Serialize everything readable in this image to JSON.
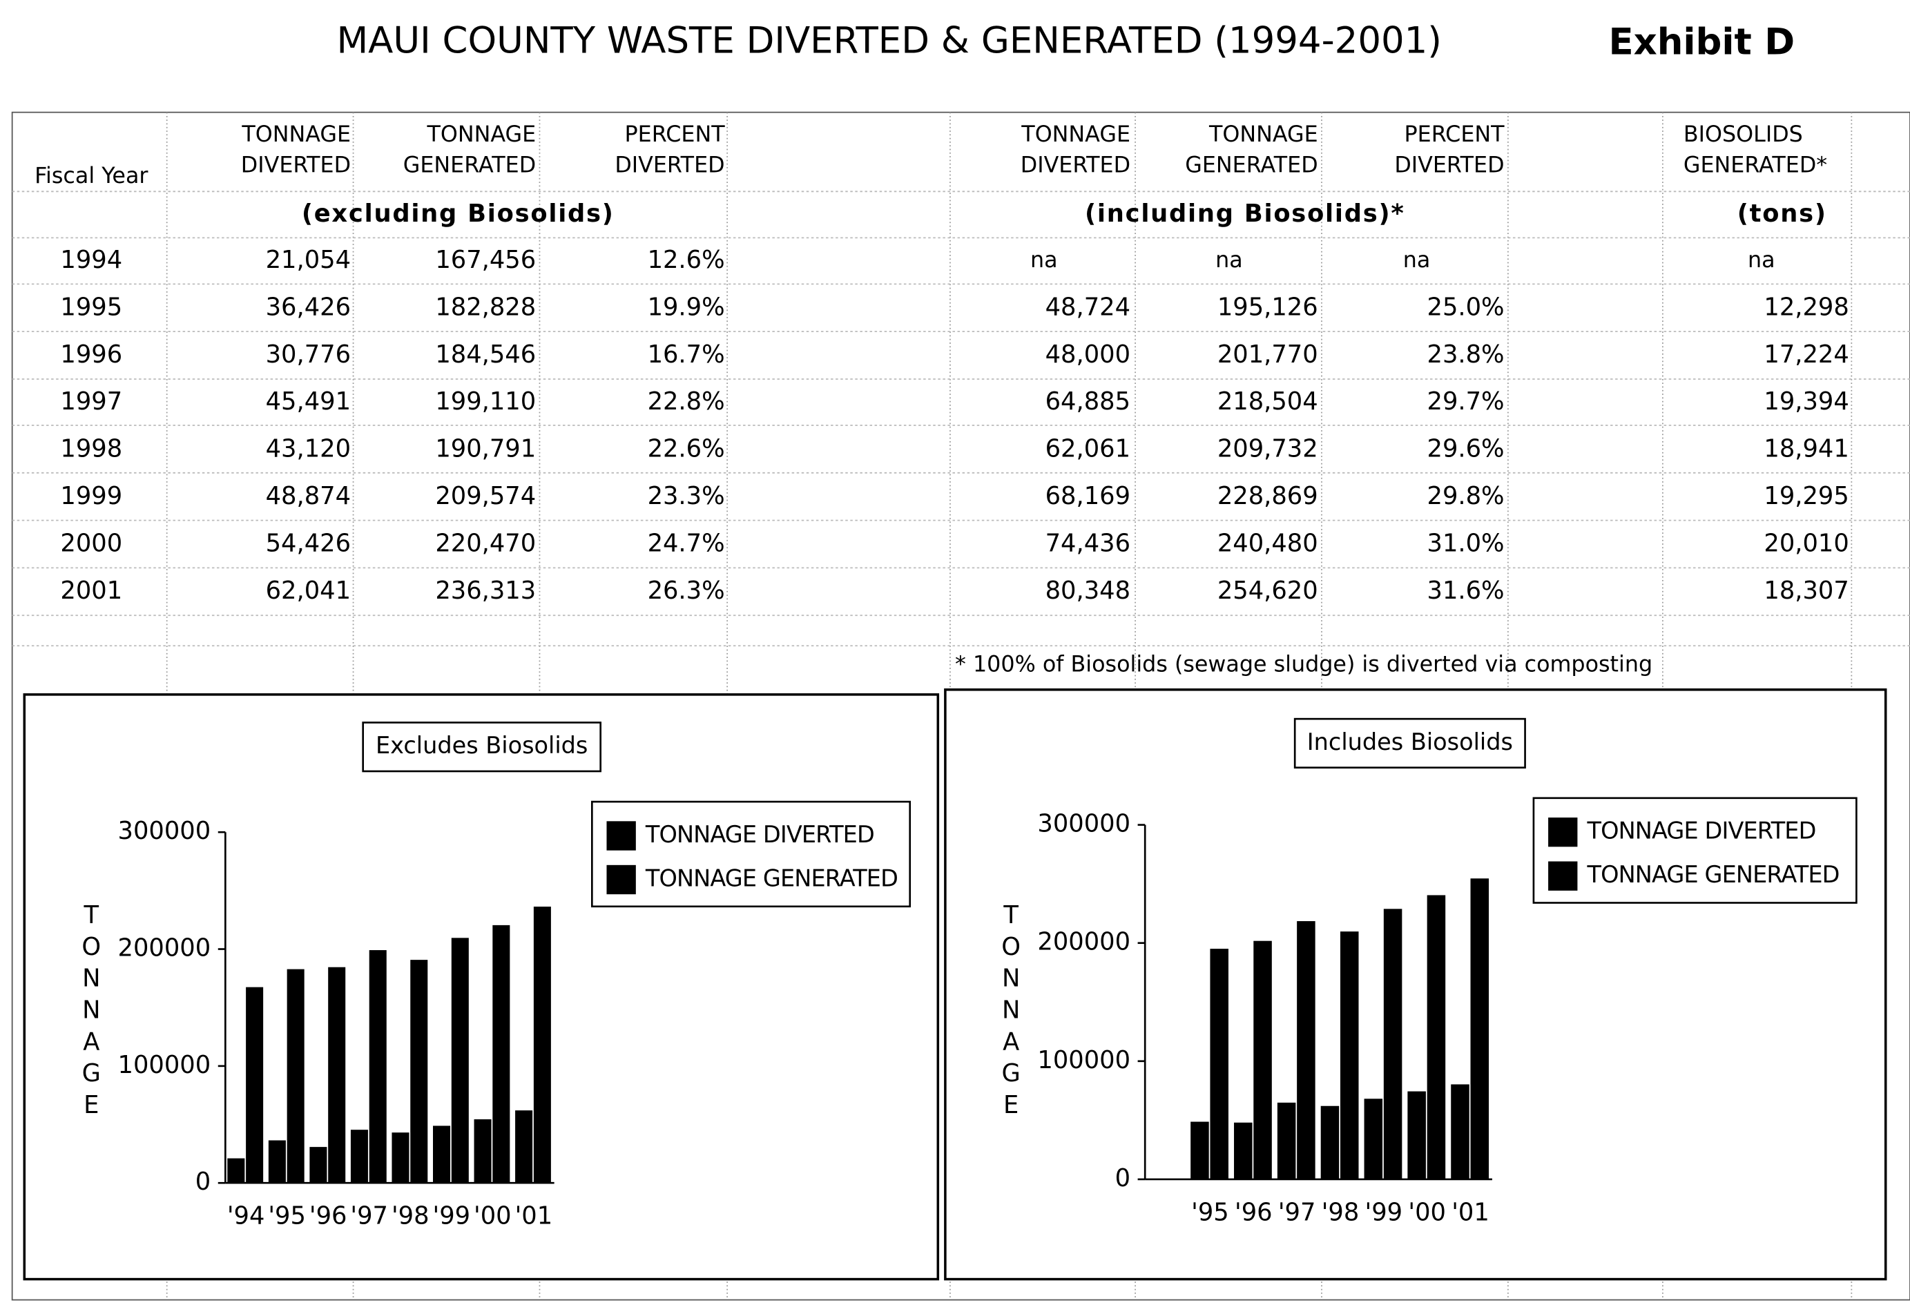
{
  "title": "MAUI COUNTY WASTE DIVERTED & GENERATED (1994-2001)",
  "exhibit": "Exhibit D",
  "table": {
    "fiscal_year_header": "Fiscal Year",
    "left_headers": [
      [
        "TONNAGE",
        "DIVERTED"
      ],
      [
        "TONNAGE",
        "GENERATED"
      ],
      [
        "PERCENT",
        "DIVERTED"
      ]
    ],
    "left_group": "(excluding Biosolids)",
    "right_headers": [
      [
        "TONNAGE",
        "DIVERTED"
      ],
      [
        "TONNAGE",
        "GENERATED"
      ],
      [
        "PERCENT",
        "DIVERTED"
      ]
    ],
    "right_group": "(including Biosolids)*",
    "biosolids_header": [
      "BIOSOLIDS",
      "GENERATED*"
    ],
    "biosolids_unit": "(tons)",
    "rows": [
      [
        "1994",
        "21,054",
        "167,456",
        "12.6%",
        "na",
        "na",
        "na",
        "na"
      ],
      [
        "1995",
        "36,426",
        "182,828",
        "19.9%",
        "48,724",
        "195,126",
        "25.0%",
        "12,298"
      ],
      [
        "1996",
        "30,776",
        "184,546",
        "16.7%",
        "48,000",
        "201,770",
        "23.8%",
        "17,224"
      ],
      [
        "1997",
        "45,491",
        "199,110",
        "22.8%",
        "64,885",
        "218,504",
        "29.7%",
        "19,394"
      ],
      [
        "1998",
        "43,120",
        "190,791",
        "22.6%",
        "62,061",
        "209,732",
        "29.6%",
        "18,941"
      ],
      [
        "1999",
        "48,874",
        "209,574",
        "23.3%",
        "68,169",
        "228,869",
        "29.8%",
        "19,295"
      ],
      [
        "2000",
        "54,426",
        "220,470",
        "24.7%",
        "74,436",
        "240,480",
        "31.0%",
        "20,010"
      ],
      [
        "2001",
        "62,041",
        "236,313",
        "26.3%",
        "80,348",
        "254,620",
        "31.6%",
        "18,307"
      ]
    ],
    "note": "* 100% of Biosolids (sewage sludge) is diverted via composting"
  },
  "chart_data": [
    {
      "type": "bar",
      "title": "Excludes Biosolids",
      "y_label": "TONNAGE",
      "categories": [
        "'94",
        "'95",
        "'96",
        "'97",
        "'98",
        "'99",
        "'00",
        "'01"
      ],
      "series": [
        {
          "name": "TONNAGE DIVERTED",
          "color": "#000000",
          "values": [
            21054,
            36426,
            30776,
            45491,
            43120,
            48874,
            54426,
            62041
          ]
        },
        {
          "name": "TONNAGE GENERATED",
          "color": "#000000",
          "values": [
            167456,
            182828,
            184546,
            199110,
            190791,
            209574,
            220470,
            236313
          ]
        }
      ],
      "ylim": [
        0,
        300000
      ],
      "yticks": [
        0,
        100000,
        200000,
        300000
      ],
      "legend": "upper right"
    },
    {
      "type": "bar",
      "title": "Includes Biosolids",
      "y_label": "TONNAGE",
      "categories": [
        null,
        "'95",
        "'96",
        "'97",
        "'98",
        "'99",
        "'00",
        "'01"
      ],
      "series": [
        {
          "name": "TONNAGE DIVERTED",
          "color": "#000000",
          "values": [
            null,
            48724,
            48000,
            64885,
            62061,
            68169,
            74436,
            80348
          ]
        },
        {
          "name": "TONNAGE GENERATED",
          "color": "#000000",
          "values": [
            null,
            195126,
            201770,
            218504,
            209732,
            228869,
            240480,
            254620
          ]
        }
      ],
      "ylim": [
        0,
        300000
      ],
      "yticks": [
        0,
        100000,
        200000,
        300000
      ],
      "legend": "upper right"
    }
  ]
}
